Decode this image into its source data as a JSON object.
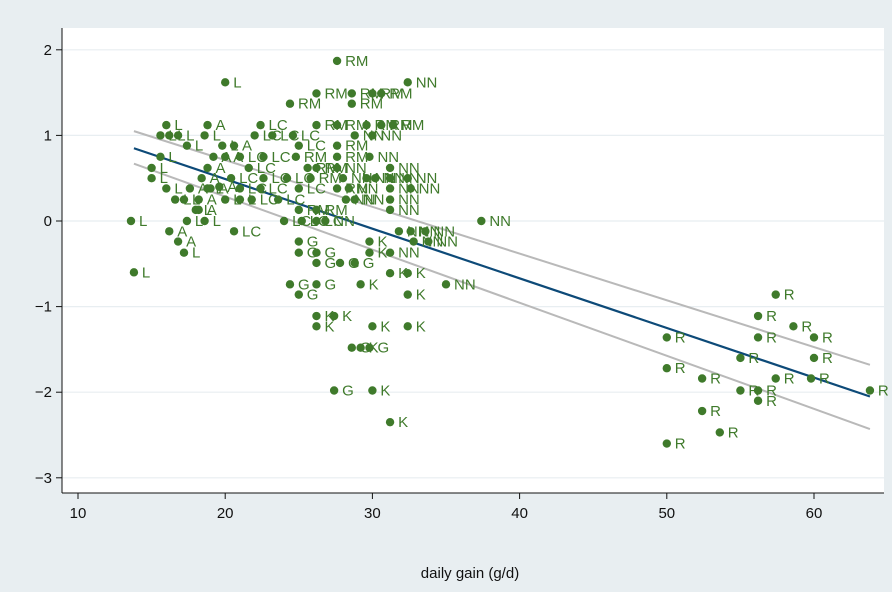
{
  "chart_data": {
    "type": "scatter",
    "title": "",
    "xlabel": "daily gain (g/d)",
    "ylabel": "",
    "xlim": [
      10,
      64
    ],
    "ylim": [
      -3,
      2
    ],
    "xticks": [
      10,
      20,
      30,
      40,
      50,
      60
    ],
    "yticks": [
      -3,
      -2,
      -1,
      0,
      1,
      2
    ],
    "xtick_labels": [
      "10",
      "20",
      "30",
      "40",
      "50",
      "60"
    ],
    "ytick_labels": [
      "−3",
      "−2",
      "−1",
      "0",
      "1",
      "2"
    ],
    "grid": "horizontal",
    "colors": {
      "background": "#e8eef1",
      "plot_area": "#ffffff",
      "points": "#3f7a2b",
      "fit_line": "#0d4a78",
      "ci_band": "#b9b9b9"
    },
    "fit_line": {
      "x": [
        13.8,
        63.8
      ],
      "y": [
        0.85,
        -2.05
      ]
    },
    "ci_upper": {
      "x": [
        13.8,
        63.8
      ],
      "y": [
        1.05,
        -1.68
      ]
    },
    "ci_lower": {
      "x": [
        13.8,
        63.8
      ],
      "y": [
        0.67,
        -2.43
      ]
    },
    "points": [
      {
        "x": 20.0,
        "y": 1.62,
        "label": "L"
      },
      {
        "x": 16.0,
        "y": 1.12,
        "label": "L"
      },
      {
        "x": 15.6,
        "y": 1.0,
        "label": "L"
      },
      {
        "x": 16.2,
        "y": 1.0,
        "label": "L"
      },
      {
        "x": 16.8,
        "y": 1.0,
        "label": "L"
      },
      {
        "x": 17.4,
        "y": 0.88,
        "label": "L"
      },
      {
        "x": 18.6,
        "y": 1.0,
        "label": "L"
      },
      {
        "x": 19.8,
        "y": 0.88,
        "label": "L"
      },
      {
        "x": 15.6,
        "y": 0.75,
        "label": "L"
      },
      {
        "x": 15.0,
        "y": 0.62,
        "label": "L"
      },
      {
        "x": 15.0,
        "y": 0.5,
        "label": "L"
      },
      {
        "x": 16.0,
        "y": 0.38,
        "label": "L"
      },
      {
        "x": 16.6,
        "y": 0.25,
        "label": "L"
      },
      {
        "x": 17.2,
        "y": 0.25,
        "label": "L"
      },
      {
        "x": 18.8,
        "y": 0.38,
        "label": "L"
      },
      {
        "x": 20.0,
        "y": 0.25,
        "label": "L"
      },
      {
        "x": 18.0,
        "y": 0.13,
        "label": "L"
      },
      {
        "x": 17.4,
        "y": 0.0,
        "label": "L"
      },
      {
        "x": 18.6,
        "y": 0.0,
        "label": "L"
      },
      {
        "x": 13.6,
        "y": 0.0,
        "label": "L"
      },
      {
        "x": 13.8,
        "y": -0.6,
        "label": "L"
      },
      {
        "x": 17.2,
        "y": -0.37,
        "label": "L"
      },
      {
        "x": 21.0,
        "y": 0.25,
        "label": "L"
      },
      {
        "x": 18.8,
        "y": 1.12,
        "label": "A"
      },
      {
        "x": 20.6,
        "y": 0.88,
        "label": "A"
      },
      {
        "x": 20.0,
        "y": 0.75,
        "label": "A"
      },
      {
        "x": 19.2,
        "y": 0.75,
        "label": "A"
      },
      {
        "x": 18.8,
        "y": 0.62,
        "label": "A"
      },
      {
        "x": 18.4,
        "y": 0.5,
        "label": "A"
      },
      {
        "x": 17.6,
        "y": 0.38,
        "label": "A"
      },
      {
        "x": 18.2,
        "y": 0.25,
        "label": "A"
      },
      {
        "x": 19.0,
        "y": 0.38,
        "label": "A"
      },
      {
        "x": 19.6,
        "y": 0.4,
        "label": "A"
      },
      {
        "x": 18.2,
        "y": 0.13,
        "label": "A"
      },
      {
        "x": 16.2,
        "y": -0.12,
        "label": "A"
      },
      {
        "x": 16.8,
        "y": -0.24,
        "label": "A"
      },
      {
        "x": 22.4,
        "y": 1.12,
        "label": "LC"
      },
      {
        "x": 22.0,
        "y": 1.0,
        "label": "LC"
      },
      {
        "x": 23.2,
        "y": 1.0,
        "label": "LC"
      },
      {
        "x": 21.0,
        "y": 0.75,
        "label": "LC"
      },
      {
        "x": 22.6,
        "y": 0.75,
        "label": "LC"
      },
      {
        "x": 21.6,
        "y": 0.62,
        "label": "LC"
      },
      {
        "x": 20.4,
        "y": 0.5,
        "label": "LC"
      },
      {
        "x": 22.6,
        "y": 0.5,
        "label": "LC"
      },
      {
        "x": 24.2,
        "y": 0.5,
        "label": "LC"
      },
      {
        "x": 21.0,
        "y": 0.38,
        "label": "LC"
      },
      {
        "x": 22.4,
        "y": 0.38,
        "label": "LC"
      },
      {
        "x": 25.0,
        "y": 0.38,
        "label": "LC"
      },
      {
        "x": 21.8,
        "y": 0.25,
        "label": "LC"
      },
      {
        "x": 23.6,
        "y": 0.25,
        "label": "LC"
      },
      {
        "x": 24.0,
        "y": 0.0,
        "label": "LC"
      },
      {
        "x": 25.2,
        "y": 0.0,
        "label": "LC"
      },
      {
        "x": 26.2,
        "y": 0.0,
        "label": "LC"
      },
      {
        "x": 20.6,
        "y": -0.12,
        "label": "LC"
      },
      {
        "x": 25.0,
        "y": 0.88,
        "label": "LC"
      },
      {
        "x": 24.6,
        "y": 1.0,
        "label": "LC"
      },
      {
        "x": 27.6,
        "y": 1.87,
        "label": "RM"
      },
      {
        "x": 24.4,
        "y": 1.37,
        "label": "RM"
      },
      {
        "x": 26.2,
        "y": 1.49,
        "label": "RM"
      },
      {
        "x": 28.6,
        "y": 1.49,
        "label": "RM"
      },
      {
        "x": 30.0,
        "y": 1.49,
        "label": "RM"
      },
      {
        "x": 30.6,
        "y": 1.49,
        "label": "RM"
      },
      {
        "x": 28.6,
        "y": 1.37,
        "label": "RM"
      },
      {
        "x": 26.2,
        "y": 1.12,
        "label": "RM"
      },
      {
        "x": 27.6,
        "y": 1.12,
        "label": "RM"
      },
      {
        "x": 29.6,
        "y": 1.12,
        "label": "RM"
      },
      {
        "x": 30.6,
        "y": 1.12,
        "label": "RM"
      },
      {
        "x": 31.4,
        "y": 1.12,
        "label": "RM"
      },
      {
        "x": 27.6,
        "y": 0.88,
        "label": "RM"
      },
      {
        "x": 27.6,
        "y": 0.75,
        "label": "RM"
      },
      {
        "x": 24.8,
        "y": 0.75,
        "label": "RM"
      },
      {
        "x": 25.6,
        "y": 0.62,
        "label": "RM"
      },
      {
        "x": 26.2,
        "y": 0.62,
        "label": "RM"
      },
      {
        "x": 25.8,
        "y": 0.5,
        "label": "RM"
      },
      {
        "x": 27.6,
        "y": 0.38,
        "label": "RM"
      },
      {
        "x": 25.0,
        "y": 0.13,
        "label": "RM"
      },
      {
        "x": 26.2,
        "y": 0.13,
        "label": "RM"
      },
      {
        "x": 32.4,
        "y": 1.62,
        "label": "NN"
      },
      {
        "x": 30.0,
        "y": 1.0,
        "label": "NN"
      },
      {
        "x": 28.8,
        "y": 1.0,
        "label": "NN"
      },
      {
        "x": 29.8,
        "y": 0.75,
        "label": "NN"
      },
      {
        "x": 31.2,
        "y": 0.62,
        "label": "NN"
      },
      {
        "x": 29.6,
        "y": 0.5,
        "label": "NN"
      },
      {
        "x": 30.2,
        "y": 0.5,
        "label": "NN"
      },
      {
        "x": 31.2,
        "y": 0.5,
        "label": "NN"
      },
      {
        "x": 32.4,
        "y": 0.5,
        "label": "NN"
      },
      {
        "x": 28.0,
        "y": 0.5,
        "label": "NN"
      },
      {
        "x": 31.2,
        "y": 0.38,
        "label": "NN"
      },
      {
        "x": 32.6,
        "y": 0.38,
        "label": "NN"
      },
      {
        "x": 28.4,
        "y": 0.38,
        "label": "NN"
      },
      {
        "x": 28.8,
        "y": 0.25,
        "label": "NN"
      },
      {
        "x": 31.2,
        "y": 0.25,
        "label": "NN"
      },
      {
        "x": 31.2,
        "y": 0.13,
        "label": "NN"
      },
      {
        "x": 37.4,
        "y": 0.0,
        "label": "NN"
      },
      {
        "x": 31.8,
        "y": -0.12,
        "label": "NN"
      },
      {
        "x": 32.6,
        "y": -0.12,
        "label": "NN"
      },
      {
        "x": 33.6,
        "y": -0.12,
        "label": "NN"
      },
      {
        "x": 32.8,
        "y": -0.24,
        "label": "NN"
      },
      {
        "x": 33.8,
        "y": -0.24,
        "label": "NN"
      },
      {
        "x": 31.2,
        "y": -0.37,
        "label": "NN"
      },
      {
        "x": 35.0,
        "y": -0.74,
        "label": "NN"
      },
      {
        "x": 26.8,
        "y": 0.0,
        "label": "NN"
      },
      {
        "x": 28.2,
        "y": 0.25,
        "label": "NN"
      },
      {
        "x": 27.6,
        "y": 0.62,
        "label": "NN"
      },
      {
        "x": 25.0,
        "y": -0.24,
        "label": "G"
      },
      {
        "x": 25.0,
        "y": -0.37,
        "label": "G"
      },
      {
        "x": 26.2,
        "y": -0.37,
        "label": "G"
      },
      {
        "x": 26.2,
        "y": -0.49,
        "label": "G"
      },
      {
        "x": 27.8,
        "y": -0.49,
        "label": "G"
      },
      {
        "x": 28.8,
        "y": -0.49,
        "label": "G"
      },
      {
        "x": 24.4,
        "y": -0.74,
        "label": "G"
      },
      {
        "x": 26.2,
        "y": -0.74,
        "label": "G"
      },
      {
        "x": 25.0,
        "y": -0.86,
        "label": "G"
      },
      {
        "x": 28.6,
        "y": -1.48,
        "label": "G"
      },
      {
        "x": 29.8,
        "y": -1.48,
        "label": "G"
      },
      {
        "x": 27.4,
        "y": -1.98,
        "label": "G"
      },
      {
        "x": 29.8,
        "y": -0.24,
        "label": "K"
      },
      {
        "x": 29.8,
        "y": -0.37,
        "label": "K"
      },
      {
        "x": 31.2,
        "y": -0.61,
        "label": "K"
      },
      {
        "x": 32.4,
        "y": -0.61,
        "label": "K"
      },
      {
        "x": 29.2,
        "y": -0.74,
        "label": "K"
      },
      {
        "x": 32.4,
        "y": -0.86,
        "label": "K"
      },
      {
        "x": 26.2,
        "y": -1.11,
        "label": "K"
      },
      {
        "x": 27.4,
        "y": -1.11,
        "label": "K"
      },
      {
        "x": 26.2,
        "y": -1.23,
        "label": "K"
      },
      {
        "x": 30.0,
        "y": -1.23,
        "label": "K"
      },
      {
        "x": 32.4,
        "y": -1.23,
        "label": "K"
      },
      {
        "x": 29.2,
        "y": -1.48,
        "label": "K"
      },
      {
        "x": 30.0,
        "y": -1.98,
        "label": "K"
      },
      {
        "x": 31.2,
        "y": -2.35,
        "label": "K"
      },
      {
        "x": 57.4,
        "y": -0.86,
        "label": "R"
      },
      {
        "x": 56.2,
        "y": -1.11,
        "label": "R"
      },
      {
        "x": 58.6,
        "y": -1.23,
        "label": "R"
      },
      {
        "x": 50.0,
        "y": -1.36,
        "label": "R"
      },
      {
        "x": 56.2,
        "y": -1.36,
        "label": "R"
      },
      {
        "x": 60.0,
        "y": -1.36,
        "label": "R"
      },
      {
        "x": 55.0,
        "y": -1.6,
        "label": "R"
      },
      {
        "x": 60.0,
        "y": -1.6,
        "label": "R"
      },
      {
        "x": 50.0,
        "y": -1.72,
        "label": "R"
      },
      {
        "x": 52.4,
        "y": -1.84,
        "label": "R"
      },
      {
        "x": 57.4,
        "y": -1.84,
        "label": "R"
      },
      {
        "x": 59.8,
        "y": -1.84,
        "label": "R"
      },
      {
        "x": 55.0,
        "y": -1.98,
        "label": "R"
      },
      {
        "x": 56.2,
        "y": -1.98,
        "label": "R"
      },
      {
        "x": 63.8,
        "y": -1.98,
        "label": "R"
      },
      {
        "x": 56.2,
        "y": -2.1,
        "label": "R"
      },
      {
        "x": 52.4,
        "y": -2.22,
        "label": "R"
      },
      {
        "x": 53.6,
        "y": -2.47,
        "label": "R"
      },
      {
        "x": 50.0,
        "y": -2.6,
        "label": "R"
      }
    ]
  }
}
